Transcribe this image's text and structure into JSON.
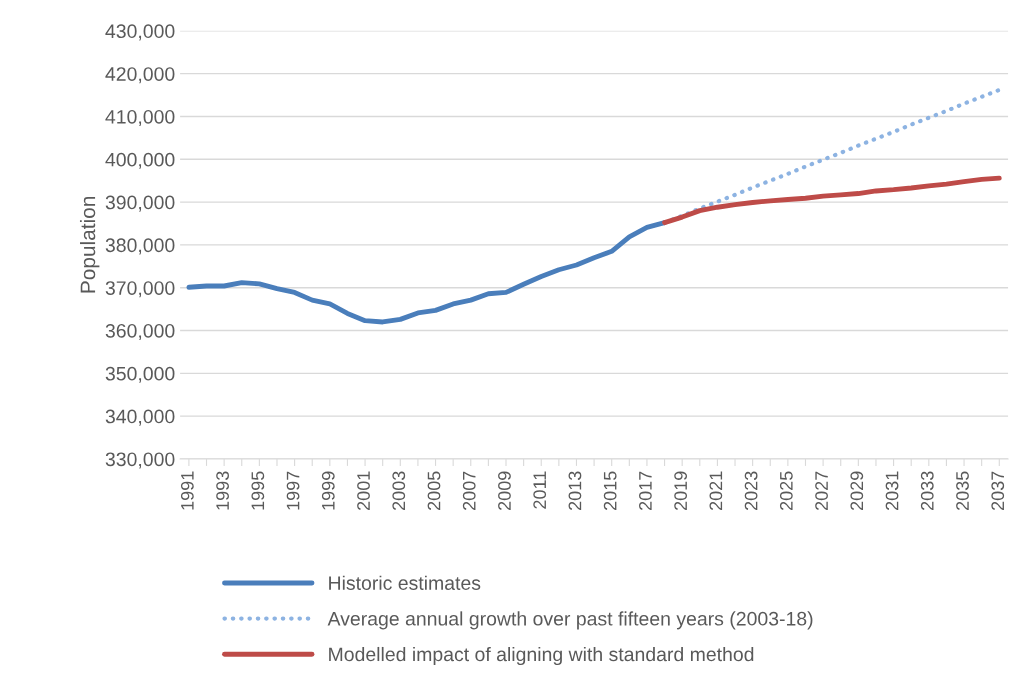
{
  "chart_data": {
    "type": "line",
    "ylabel": "Population",
    "categories": [
      "1991",
      null,
      "1993",
      null,
      "1995",
      null,
      "1997",
      null,
      "1999",
      null,
      "2001",
      null,
      "2003",
      null,
      "2005",
      null,
      "2007",
      null,
      "2009",
      null,
      "2011",
      null,
      "2013",
      null,
      "2015",
      null,
      "2017",
      null,
      "2019",
      null,
      "2021",
      null,
      "2023",
      null,
      "2025",
      null,
      "2027",
      null,
      "2029",
      null,
      "2031",
      null,
      "2033",
      null,
      "2035",
      null,
      "2037"
    ],
    "series": [
      {
        "name": "Historic estimates",
        "color": "#4a7ebb",
        "line_style": "solid",
        "values": [
          370100,
          370400,
          370400,
          371200,
          370900,
          369800,
          368900,
          367100,
          366200,
          364000,
          362300,
          362000,
          362600,
          364100,
          364700,
          366200,
          367100,
          368600,
          368900,
          370800,
          372600,
          374200,
          375300,
          377000,
          378500,
          381900,
          384100,
          385200,
          null,
          null,
          null,
          null,
          null,
          null,
          null,
          null,
          null,
          null,
          null,
          null,
          null,
          null,
          null,
          null,
          null,
          null,
          null
        ]
      },
      {
        "name": "Average annual growth over past fifteen years (2003-18)",
        "color": "#8db3e2",
        "line_style": "dotted",
        "values": [
          null,
          null,
          null,
          null,
          null,
          null,
          null,
          null,
          null,
          null,
          null,
          null,
          null,
          null,
          null,
          null,
          null,
          null,
          null,
          null,
          null,
          null,
          null,
          null,
          null,
          null,
          null,
          385200,
          386800,
          388500,
          390100,
          391700,
          393400,
          395000,
          396600,
          398300,
          399900,
          401500,
          403200,
          404800,
          406400,
          408100,
          409700,
          411300,
          413000,
          414600,
          416200
        ]
      },
      {
        "name": "Modelled impact of aligning with standard method",
        "color": "#be4b48",
        "line_style": "solid",
        "values": [
          null,
          null,
          null,
          null,
          null,
          null,
          null,
          null,
          null,
          null,
          null,
          null,
          null,
          null,
          null,
          null,
          null,
          null,
          null,
          null,
          null,
          null,
          null,
          null,
          null,
          null,
          null,
          385200,
          386500,
          388000,
          388800,
          389400,
          389900,
          390300,
          390600,
          390900,
          391400,
          391700,
          392000,
          392600,
          392900,
          393300,
          393800,
          394200,
          394800,
          395300,
          395600
        ]
      }
    ],
    "ylim": [
      330000,
      430000
    ],
    "yticks": [
      {
        "value": 330000,
        "label": "330,000"
      },
      {
        "value": 340000,
        "label": "340,000"
      },
      {
        "value": 350000,
        "label": "350,000"
      },
      {
        "value": 360000,
        "label": "360,000"
      },
      {
        "value": 370000,
        "label": "370,000"
      },
      {
        "value": 380000,
        "label": "380,000"
      },
      {
        "value": 390000,
        "label": "390,000"
      },
      {
        "value": 400000,
        "label": "400,000"
      },
      {
        "value": 410000,
        "label": "410,000"
      },
      {
        "value": 420000,
        "label": "420,000"
      },
      {
        "value": 430000,
        "label": "430,000"
      }
    ],
    "grid": "y",
    "legend": "bottom"
  }
}
